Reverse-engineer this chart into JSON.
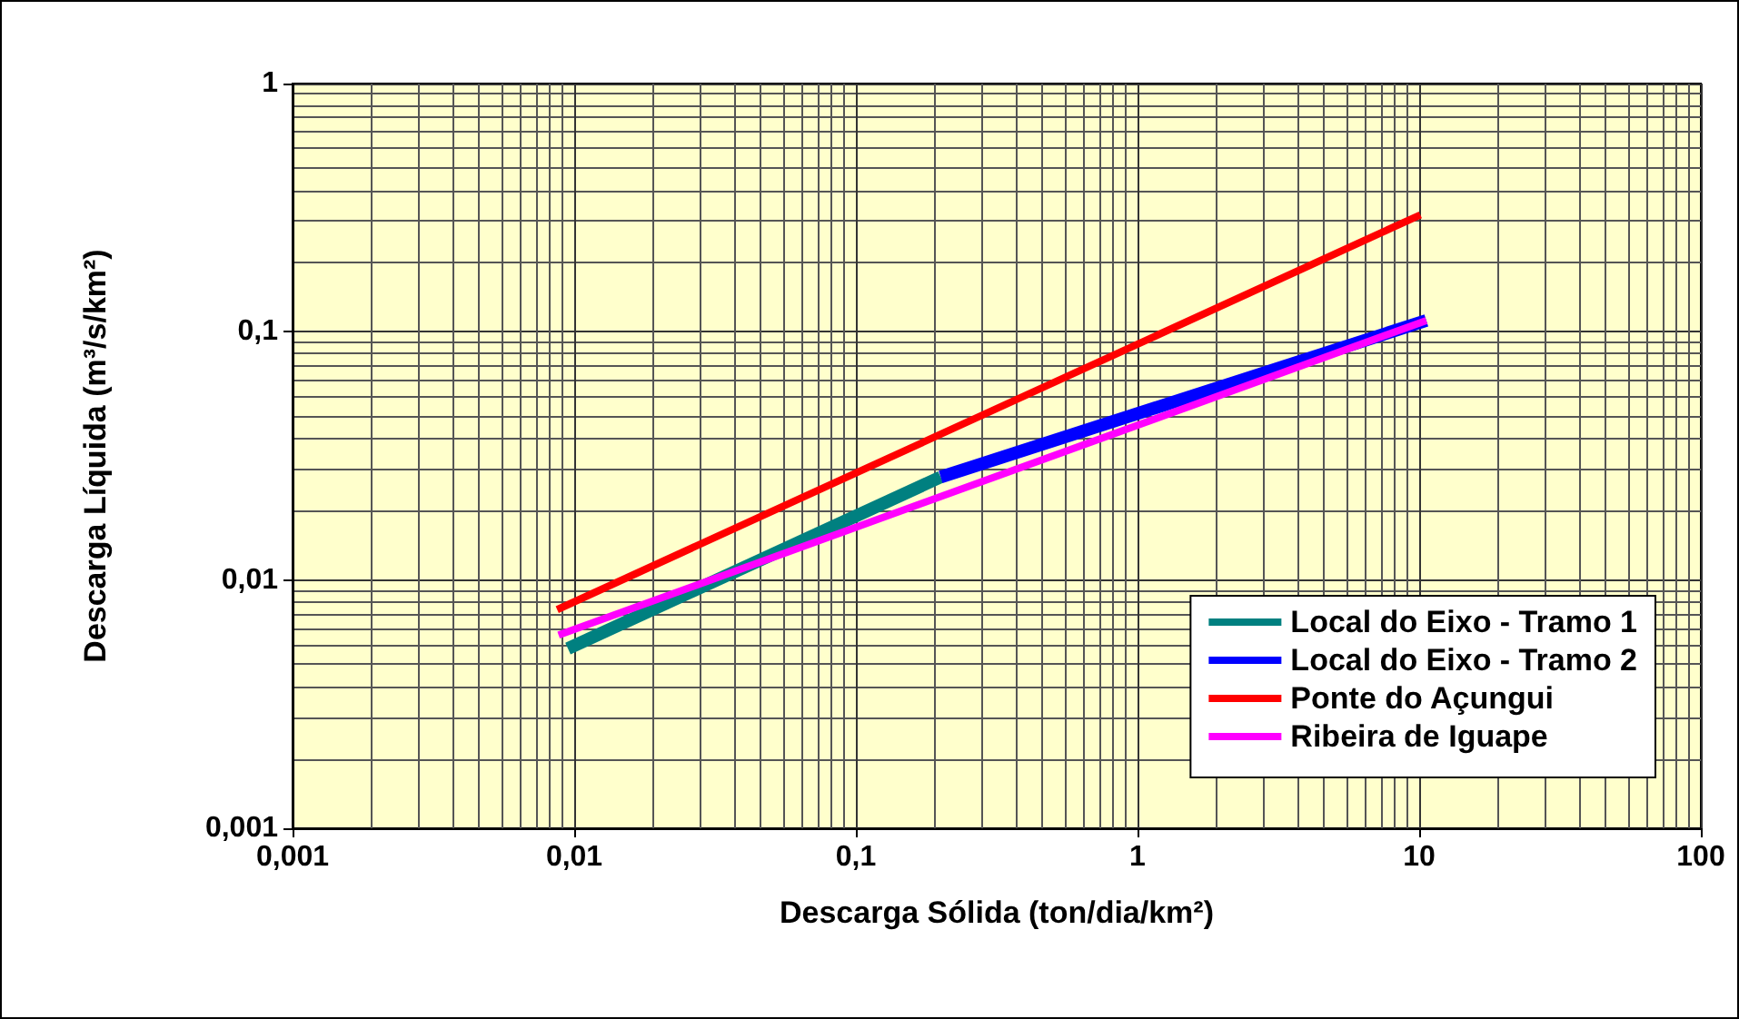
{
  "chart_data": {
    "type": "line",
    "xlabel": "Descarga Sólida (ton/dia/km²)",
    "ylabel": "Descarga Líquida (m³/s/km²)",
    "log": "xy",
    "grid": true,
    "legend": "bottom right",
    "marker": "none",
    "line_style": "solid",
    "xlim": [
      0.001,
      100
    ],
    "ylim": [
      0.001,
      1
    ],
    "xticks": [
      {
        "value": 0.001,
        "label": "0,001"
      },
      {
        "value": 0.01,
        "label": "0,01"
      },
      {
        "value": 0.1,
        "label": "0,1"
      },
      1,
      10,
      100
    ],
    "yticks": [
      {
        "value": 0.001,
        "label": "0,001"
      },
      {
        "value": 0.01,
        "label": "0,01"
      },
      {
        "value": 0.1,
        "label": "0,1"
      },
      1
    ],
    "series": [
      {
        "name": "Local do Eixo - Tramo 1",
        "color": "#008080",
        "x": [
          0.0095,
          0.2
        ],
        "values": [
          0.0053,
          0.026
        ]
      },
      {
        "name": "Local do Eixo - Tramo 2",
        "color": "#0000ff",
        "x": [
          0.2,
          10.6
        ],
        "values": [
          0.026,
          0.111
        ]
      },
      {
        "name": "Ponte do Açungui",
        "color": "#ff0000",
        "x": [
          0.0087,
          10.1
        ],
        "values": [
          0.0076,
          0.296
        ]
      },
      {
        "name": "Ribeira de Iguape",
        "color": "#ff00ff",
        "x": [
          0.0088,
          10.6
        ],
        "values": [
          0.006,
          0.111
        ]
      }
    ]
  }
}
